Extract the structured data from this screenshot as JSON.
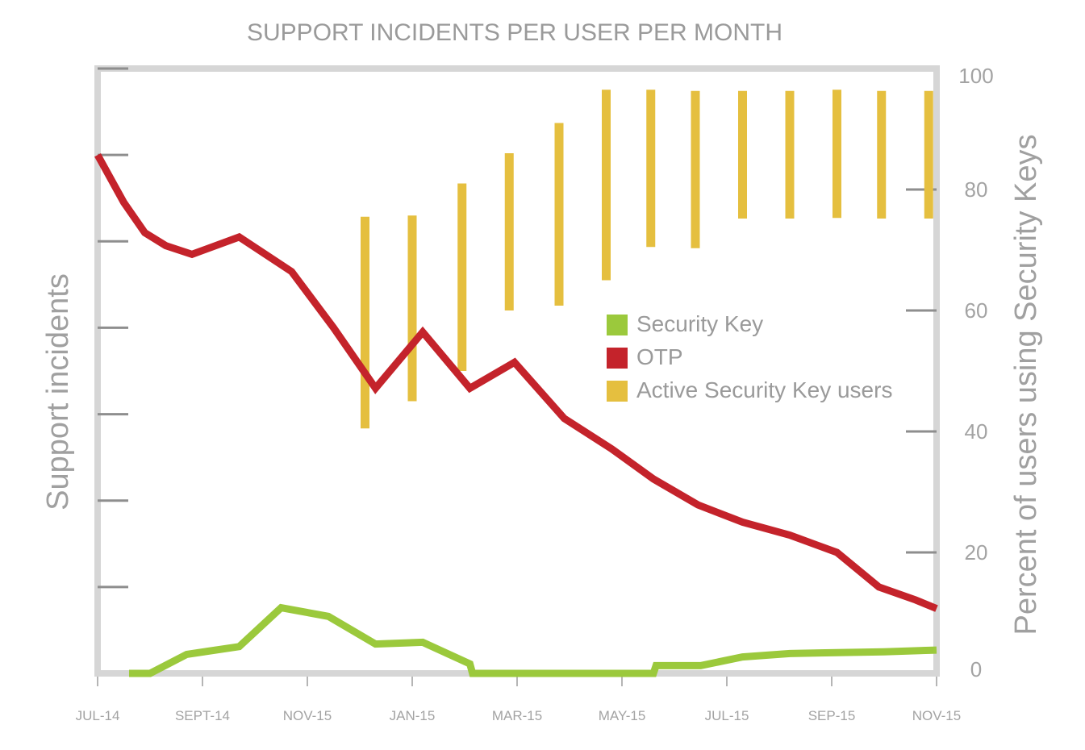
{
  "chart_data": {
    "type": "line",
    "title": "SUPPORT INCIDENTS PER USER PER MONTH",
    "ylabel_left": "Support incidents",
    "ylabel_right": "Percent of users using Security Keys",
    "x_tick_labels": [
      "JUL-14",
      "SEPT-14",
      "NOV-15",
      "JAN-15",
      "MAR-15",
      "MAY-15",
      "JUL-15",
      "SEP-15",
      "NOV-15"
    ],
    "y_right_ticks": [
      0,
      20,
      40,
      60,
      80,
      100
    ],
    "y_right_lim": [
      0,
      100
    ],
    "y_left_lim": [
      0,
      7
    ],
    "y_left_tick_count": 7,
    "x_range": [
      0,
      16
    ],
    "legend": {
      "placement": "center-right",
      "entries": [
        {
          "key": "security_key",
          "label": "Security Key",
          "color": "#9bc93c"
        },
        {
          "key": "otp",
          "label": "OTP",
          "color": "#c4232b"
        },
        {
          "key": "active_users",
          "label": "Active Security Key users",
          "color": "#e5bf3f"
        }
      ]
    },
    "series": [
      {
        "key": "otp",
        "name": "OTP",
        "color": "#c4232b",
        "x": [
          0,
          0.5,
          0.9,
          1.3,
          1.8,
          2.7,
          3.7,
          4.5,
          5.3,
          6.2,
          7.1,
          7.95,
          8.9,
          9.8,
          10.6,
          11.45,
          12.3,
          13.2,
          14.1,
          14.9,
          15.6,
          16
        ],
        "y": [
          6.0,
          5.45,
          5.1,
          4.95,
          4.85,
          5.05,
          4.65,
          4.0,
          3.3,
          3.95,
          3.3,
          3.6,
          2.95,
          2.6,
          2.25,
          1.95,
          1.75,
          1.6,
          1.4,
          1.0,
          0.85,
          0.75
        ]
      },
      {
        "key": "security_key",
        "name": "Security Key",
        "color": "#9bc93c",
        "x": [
          0.6,
          1.0,
          1.7,
          2.7,
          3.5,
          4.4,
          5.3,
          6.2,
          7.1,
          7.15,
          10.6,
          10.65,
          11.5,
          12.3,
          13.2,
          14.1,
          15.0,
          16
        ],
        "y": [
          0,
          0,
          0.22,
          0.31,
          0.76,
          0.66,
          0.34,
          0.36,
          0.11,
          0,
          0,
          0.09,
          0.09,
          0.19,
          0.23,
          0.24,
          0.25,
          0.27
        ]
      }
    ],
    "range_bars": {
      "key": "active_users",
      "name": "Active Security Key users",
      "color": "#e5bf3f",
      "x": [
        5.1,
        6.0,
        6.95,
        7.85,
        8.8,
        9.7,
        10.55,
        11.4,
        12.3,
        13.2,
        14.1,
        14.95,
        15.85
      ],
      "low": [
        40.5,
        45,
        50,
        60,
        60.8,
        65,
        70.5,
        70.3,
        75.2,
        75.2,
        75.3,
        75.2,
        75.2
      ],
      "high": [
        75.5,
        75.7,
        81,
        86,
        91,
        96.5,
        96.5,
        96.3,
        96.3,
        96.3,
        96.5,
        96.3,
        96.3
      ]
    }
  }
}
